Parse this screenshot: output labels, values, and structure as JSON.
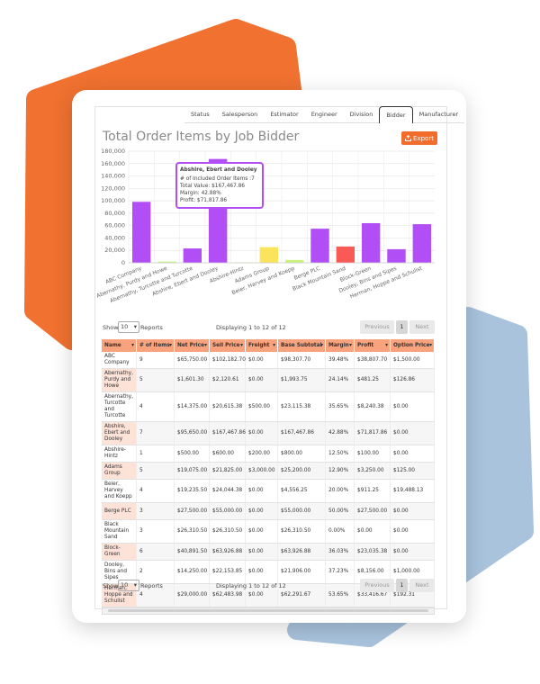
{
  "tabs": [
    "Status",
    "Salesperson",
    "Estimator",
    "Engineer",
    "Division",
    "Bidder",
    "Manufacturer"
  ],
  "title": "Total Order Items by Job Bidder",
  "export_button": "Export",
  "chart_data": {
    "type": "bar",
    "categories": [
      "ABC Company",
      "Abernathy, Purdy and Howe",
      "Abernathy, Turcotte and Turcotte",
      "Abshire, Ebert and Dooley",
      "Abshire-Hintz",
      "Adams Group",
      "Beier, Harvey and Koepp",
      "Berge PLC",
      "Black Mountain Sand",
      "Block-Green",
      "Dooley, Bins and Sipes",
      "Herman, Hoppe and Schulist"
    ],
    "values": [
      98307.7,
      1993.75,
      23115.38,
      167467.86,
      800,
      25200,
      4556.25,
      55000,
      26310.5,
      63926.88,
      21906,
      62291.67
    ],
    "colors": [
      "#b14ef5",
      "#c9f07d",
      "#b14ef5",
      "#b14ef5",
      "#c9f07d",
      "#fbe35b",
      "#c9f07d",
      "#b14ef5",
      "#fa5a55",
      "#b14ef5",
      "#b14ef5",
      "#b14ef5"
    ],
    "ylim": [
      0,
      180000
    ],
    "yticks": [
      0,
      {
        "value": 20000,
        "label": "20,000"
      },
      {
        "value": 40000,
        "label": "40,000"
      },
      {
        "value": 60000,
        "label": "60,000"
      },
      {
        "value": 80000,
        "label": "80,000"
      },
      {
        "value": 100000,
        "label": "100,000"
      },
      {
        "value": 120000,
        "label": "120,000"
      },
      {
        "value": 140000,
        "label": "140,000"
      },
      {
        "value": 160000,
        "label": "160,000"
      },
      {
        "value": 180000,
        "label": "180,000"
      }
    ],
    "grid": true
  },
  "tooltip": {
    "title": "Abshire, Ebert and Dooley",
    "lines": [
      "# of Included Order Items :7",
      "Total Value: $167,467.86",
      "Margin: 42.88%",
      "Profit: $71,817.86"
    ]
  },
  "controls_top": {
    "show": "Show",
    "page_size": 10,
    "reports": "Reports",
    "info": "Displaying 1 to 12 of 12",
    "previous": "Previous",
    "page": 1,
    "next": "Next"
  },
  "table": {
    "columns": [
      "Name",
      "# of Items",
      "Net Price",
      "Sell Price",
      "Freight",
      "Base Subtotal",
      "Margin",
      "Profit",
      "Option Price"
    ],
    "rows": [
      [
        "ABC Company",
        9,
        "$65,750.00",
        "$102,182.70",
        "$0.00",
        "$98,307.70",
        "39.48%",
        "$38,807.70",
        "$1,500.00"
      ],
      [
        "Abernathy, Purdy and Howe",
        5,
        "$1,601.30",
        "$2,120.61",
        "$0.00",
        "$1,993.75",
        "24.14%",
        "$481.25",
        "$126.86"
      ],
      [
        "Abernathy, Turcotte and Turcotte",
        4,
        "$14,375.00",
        "$20,615.38",
        "$500.00",
        "$23,115.38",
        "35.65%",
        "$8,240.38",
        "$0.00"
      ],
      [
        "Abshire, Ebert and Dooley",
        7,
        "$95,650.00",
        "$167,467.86",
        "$0.00",
        "$167,467.86",
        "42.88%",
        "$71,817.86",
        "$0.00"
      ],
      [
        "Abshire-Hintz",
        1,
        "$500.00",
        "$600.00",
        "$200.00",
        "$800.00",
        "12.50%",
        "$100.00",
        "$0.00"
      ],
      [
        "Adams Group",
        5,
        "$19,075.00",
        "$21,825.00",
        "$3,000.00",
        "$25,200.00",
        "12.90%",
        "$3,250.00",
        "$125.00"
      ],
      [
        "Beier, Harvey and Koepp",
        4,
        "$19,235.50",
        "$24,044.38",
        "$0.00",
        "$4,556.25",
        "20.00%",
        "$911.25",
        "$19,488.13"
      ],
      [
        "Berge PLC",
        3,
        "$27,500.00",
        "$55,000.00",
        "$0.00",
        "$55,000.00",
        "50.00%",
        "$27,500.00",
        "$0.00"
      ],
      [
        "Black Mountain Sand",
        3,
        "$26,310.50",
        "$26,310.50",
        "$0.00",
        "$26,310.50",
        "0.00%",
        "$0.00",
        "$0.00"
      ],
      [
        "Block-Green",
        6,
        "$40,891.50",
        "$63,926.88",
        "$0.00",
        "$63,926.88",
        "36.03%",
        "$23,035.38",
        "$0.00"
      ],
      [
        "Dooley, Bins and Sipes",
        2,
        "$14,250.00",
        "$22,153.85",
        "$0.00",
        "$21,906.00",
        "37.23%",
        "$8,156.00",
        "$1,000.00"
      ],
      [
        "Herman, Hoppe and Schulist",
        4,
        "$29,000.00",
        "$62,483.98",
        "$0.00",
        "$62,291.67",
        "53.65%",
        "$33,416.67",
        "$192.31"
      ]
    ]
  },
  "controls_bottom": {
    "show": "Show",
    "page_size": 10,
    "reports": "Reports",
    "info": "Displaying 1 to 12 of 12",
    "previous": "Previous",
    "page": 1,
    "next": "Next"
  }
}
